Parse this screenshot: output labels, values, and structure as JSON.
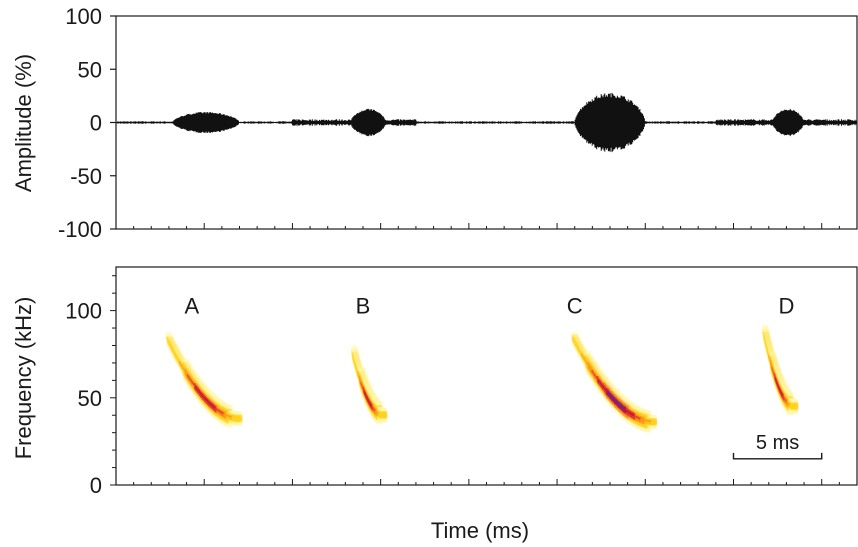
{
  "chart_data": [
    {
      "type": "line",
      "panel": "oscillogram",
      "ylabel": "Amplitude (%)",
      "ylim": [
        -100,
        100
      ],
      "yticks": [
        100,
        50,
        0,
        -50,
        -100
      ],
      "ytick_labels": [
        "100",
        "50",
        "0",
        "-50",
        "-100"
      ],
      "xlim": [
        0,
        42
      ],
      "grid": false,
      "series_color": "#111111",
      "noise_amplitude": 1.2,
      "calls": [
        {
          "label": "A",
          "start": 3.2,
          "end": 7.0,
          "peak_amplitude": 10
        },
        {
          "label": "B",
          "start": 13.3,
          "end": 15.3,
          "peak_amplitude": 13
        },
        {
          "label": "C",
          "start": 26.0,
          "end": 30.0,
          "peak_amplitude": 28
        },
        {
          "label": "D",
          "start": 37.2,
          "end": 39.0,
          "peak_amplitude": 13
        }
      ],
      "noisy_segments": [
        [
          10.0,
          17.0
        ],
        [
          34.0,
          42.0
        ]
      ]
    },
    {
      "type": "heatmap",
      "panel": "spectrogram",
      "ylabel": "Frequency (kHz)",
      "xlabel": "Time (ms)",
      "ylim": [
        0,
        125
      ],
      "yticks": [
        100,
        50,
        0
      ],
      "ytick_labels": [
        "100",
        "50",
        "0"
      ],
      "xlim": [
        0,
        42
      ],
      "colormap": [
        "#fff7a8",
        "#ffd21f",
        "#f79a1c",
        "#e43a2e",
        "#c0143c",
        "#3a3ab0"
      ],
      "scale_bar": {
        "label": "5 ms",
        "start": 35,
        "end": 40,
        "freq": 15
      },
      "calls": [
        {
          "label": "A",
          "label_time": 4.3,
          "label_freq": 103,
          "start": 3.0,
          "end": 7.0,
          "f_start": 84,
          "f_end": 38,
          "peak_intensity": 0.82
        },
        {
          "label": "B",
          "label_time": 14.0,
          "label_freq": 103,
          "start": 13.5,
          "end": 15.2,
          "f_start": 76,
          "f_end": 40,
          "peak_intensity": 0.8
        },
        {
          "label": "C",
          "label_time": 26.0,
          "label_freq": 103,
          "start": 26.0,
          "end": 30.5,
          "f_start": 84,
          "f_end": 36,
          "peak_intensity": 1.0
        },
        {
          "label": "D",
          "label_time": 38.0,
          "label_freq": 103,
          "start": 36.8,
          "end": 38.5,
          "f_start": 88,
          "f_end": 45,
          "peak_intensity": 0.8
        }
      ]
    }
  ]
}
